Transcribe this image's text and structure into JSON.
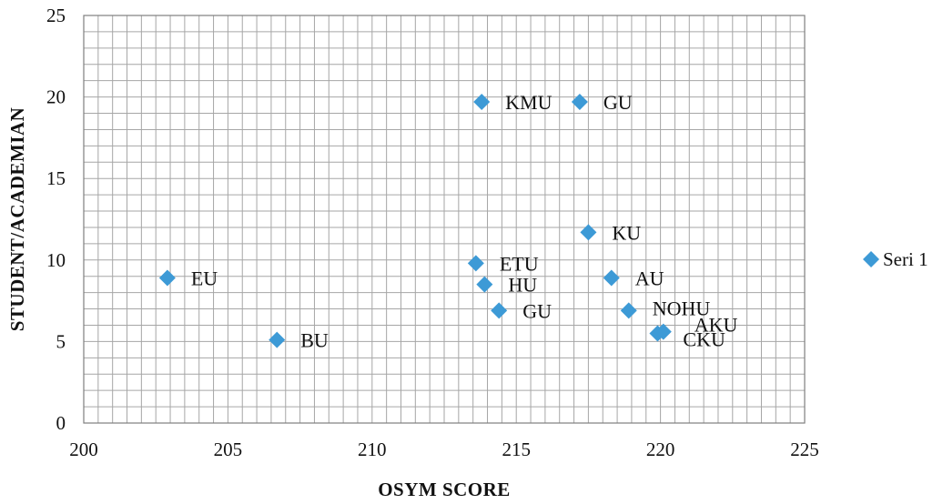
{
  "chart_data": {
    "type": "scatter",
    "title": "",
    "xlabel": "OSYM  SCORE",
    "ylabel": "STUDENT/ACADEMIAN",
    "xlim": [
      200,
      225
    ],
    "ylim": [
      0,
      25
    ],
    "xticks": [
      "200",
      "205",
      "210",
      "215",
      "220",
      "225"
    ],
    "yticks": [
      "0",
      "5",
      "10",
      "15",
      "20",
      "25"
    ],
    "grid": true,
    "legend": "right",
    "marker": "diamond",
    "color": "#3d9ad6",
    "series": [
      {
        "name": "Seri 1",
        "points": [
          {
            "label": "EU",
            "x": 202.9,
            "y": 8.9
          },
          {
            "label": "BU",
            "x": 206.7,
            "y": 5.1
          },
          {
            "label": "KMU",
            "x": 213.8,
            "y": 19.7
          },
          {
            "label": "GU",
            "x": 217.2,
            "y": 19.7
          },
          {
            "label": "KU",
            "x": 217.5,
            "y": 11.7
          },
          {
            "label": "ETU",
            "x": 213.6,
            "y": 9.8
          },
          {
            "label": "HU",
            "x": 213.9,
            "y": 8.5
          },
          {
            "label": "AU",
            "x": 218.3,
            "y": 8.9
          },
          {
            "label": "GU",
            "x": 214.4,
            "y": 6.9
          },
          {
            "label": "NOHU",
            "x": 218.9,
            "y": 6.9
          },
          {
            "label": "AKU",
            "x": 220.1,
            "y": 5.6
          },
          {
            "label": "CKU",
            "x": 219.9,
            "y": 5.5
          }
        ]
      }
    ]
  }
}
